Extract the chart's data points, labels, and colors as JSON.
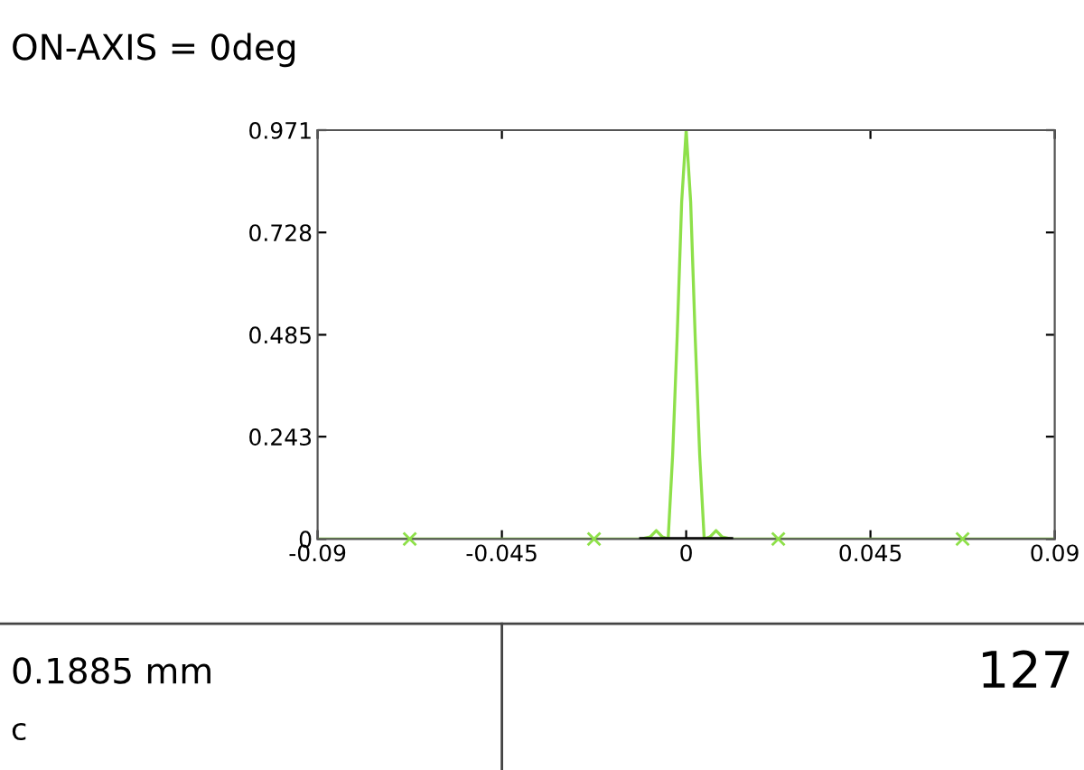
{
  "chart_data": {
    "type": "line",
    "title": "ON-AXIS = 0deg",
    "annotations": [
      "0.1885 mm",
      "c",
      "127"
    ],
    "series": [
      {
        "x": [
          -0.09,
          -0.011,
          -0.0088,
          -0.0073,
          -0.0058,
          -0.0044,
          -0.0033,
          -0.0022,
          -0.0011,
          0,
          0.0011,
          0.0022,
          0.0033,
          0.0044,
          0.0058,
          0.0073,
          0.0088,
          0.011,
          0.09
        ],
        "values": [
          0,
          0,
          0.005,
          0.02,
          0.005,
          0,
          0.2,
          0.48,
          0.8,
          0.971,
          0.8,
          0.48,
          0.2,
          0,
          0.005,
          0.02,
          0.005,
          0,
          0
        ],
        "color": "#8ee04a"
      },
      {
        "x": [
          -0.011,
          0.011
        ],
        "values": [
          0,
          0
        ],
        "color": "#000000"
      },
      {
        "type": "scatter",
        "x": [
          -0.0675,
          -0.0225,
          0.0225,
          0.0675
        ],
        "values": [
          0,
          0,
          0,
          0
        ],
        "color": "#8ee04a",
        "marker": "cross"
      }
    ],
    "xlim": [
      -0.09,
      0.09
    ],
    "xticks": [
      -0.09,
      -0.045,
      0,
      0.045,
      0.09
    ],
    "ylim": [
      0,
      0.971
    ],
    "yticks": [
      0,
      0.243,
      0.485,
      0.728,
      0.971
    ],
    "grid": false,
    "legend": false
  }
}
